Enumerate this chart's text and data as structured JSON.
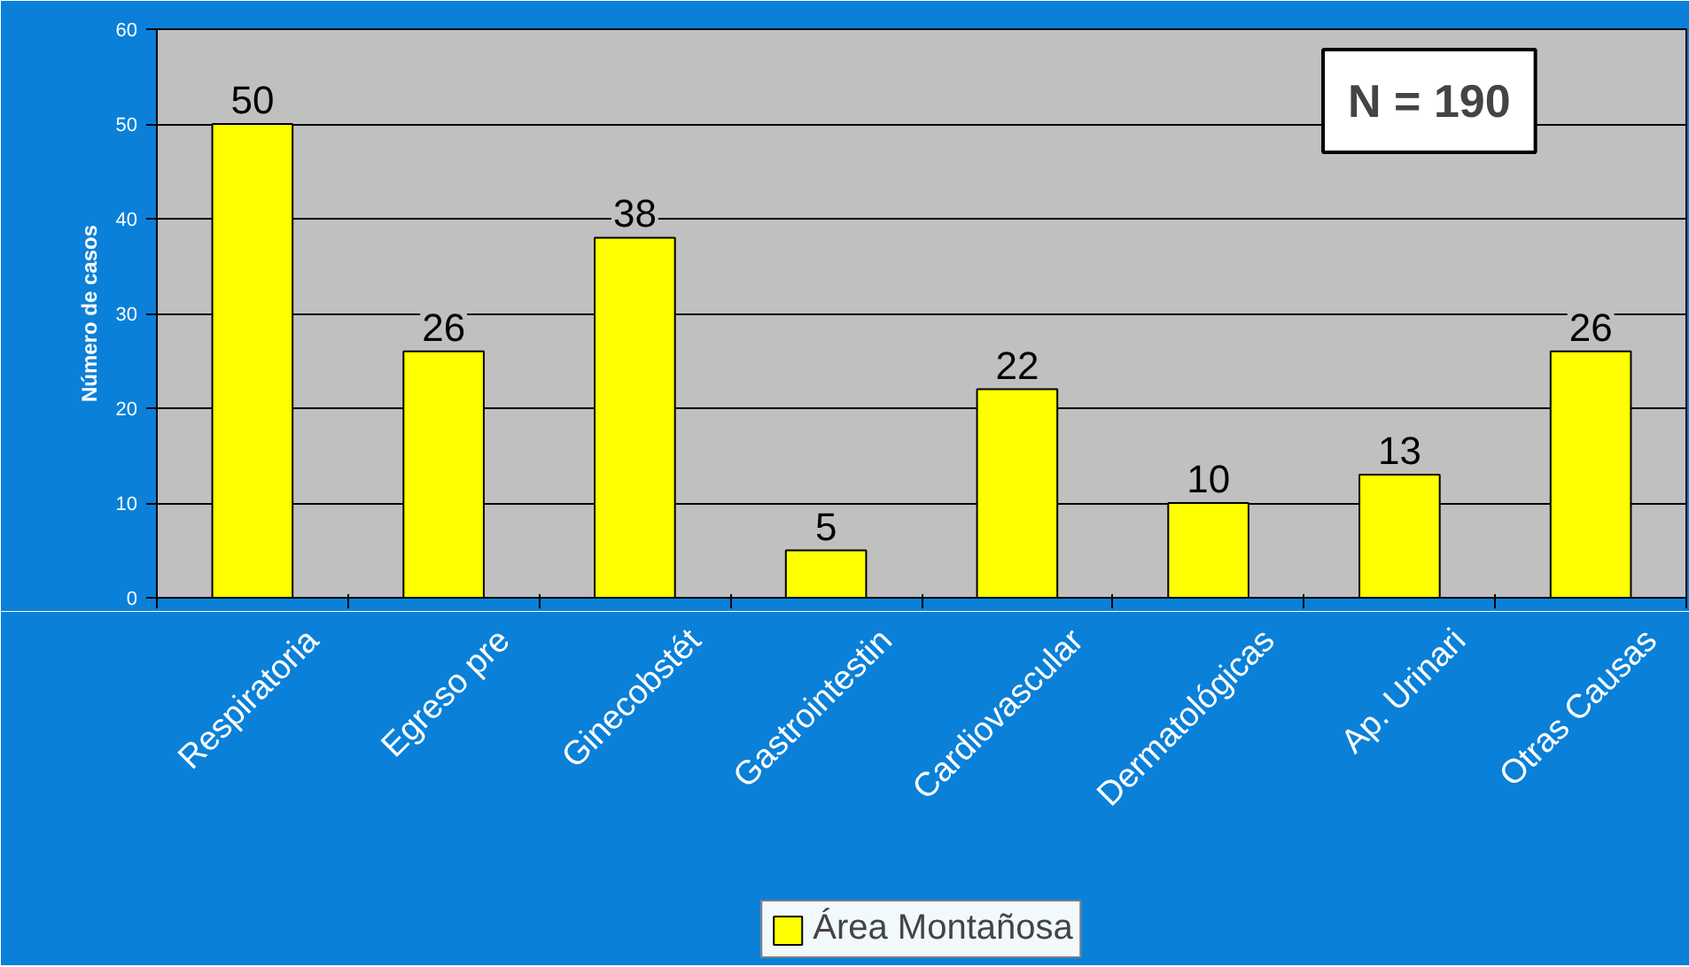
{
  "chart_data": {
    "type": "bar",
    "ylabel": "Número de casos",
    "categories": [
      "Respiratoria",
      "Egreso pre",
      "Ginecobstét",
      "Gastrointestin",
      "Cardiovascular",
      "Dermatológicas",
      "Ap. Urinari",
      "Otras Causas"
    ],
    "series": [
      {
        "name": "Área Montañosa",
        "color": "#ffff00",
        "values": [
          50,
          26,
          38,
          5,
          22,
          10,
          13,
          26
        ]
      }
    ],
    "ylim": [
      0,
      60
    ],
    "yticks": [
      0,
      10,
      20,
      30,
      40,
      50,
      60
    ],
    "grid": "y",
    "data_labels": true,
    "legend": "bottom",
    "annotations": [
      "N = 190"
    ]
  }
}
